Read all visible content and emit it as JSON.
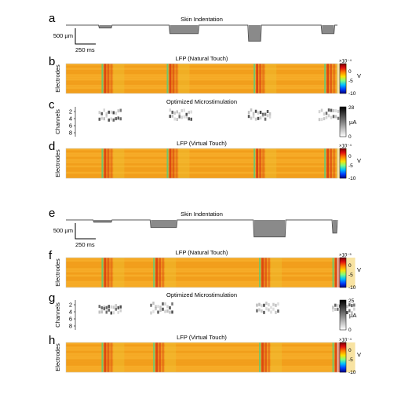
{
  "colors": {
    "heat_base": "#f4a21e",
    "heat_hot": "#d42a0c",
    "heat_cool": "#5cc97a",
    "trace": "#555555",
    "indent_fill": "#8a8a8a",
    "stim_dark": "#333333"
  },
  "colorbar_colors": {
    "jet": [
      "#7a0000",
      "#e01010",
      "#ff7f00",
      "#ffe000",
      "#7fff80",
      "#00c0ff",
      "#0040ff",
      "#00007a"
    ],
    "gray": [
      "#000000",
      "#7f7f7f",
      "#ffffff"
    ]
  },
  "panels": [
    {
      "letter": "a",
      "type": "indentation",
      "title": "Skin Indentation",
      "scale_y": "500 µm",
      "scale_x": "250 ms",
      "events": [
        {
          "start": 0.12,
          "end": 0.17,
          "depth": 0.15
        },
        {
          "start": 0.38,
          "end": 0.49,
          "depth": 0.45
        },
        {
          "start": 0.67,
          "end": 0.72,
          "depth": 0.85
        },
        {
          "start": 0.94,
          "end": 0.99,
          "depth": 0.45
        }
      ]
    },
    {
      "letter": "b",
      "type": "heatmap",
      "title": "LFP (Natural Touch)",
      "ylabel": "Electrodes",
      "colorbar": {
        "exponent": "×10⁻⁴",
        "ticks": [
          "0",
          "-5",
          "-10"
        ],
        "unit": "V",
        "scheme": "jet"
      },
      "bands": [
        0.14,
        0.38,
        0.7,
        0.96
      ]
    },
    {
      "letter": "c",
      "type": "stim",
      "title": "Optimized Microstimulation",
      "ylabel": "Channels",
      "yticks": [
        "2",
        "4",
        "6",
        "8"
      ],
      "colorbar": {
        "max": "28",
        "min": "0",
        "unit": "µA",
        "scheme": "gray"
      },
      "bursts": [
        0.12,
        0.38,
        0.67,
        0.93
      ]
    },
    {
      "letter": "d",
      "type": "heatmap",
      "title": "LFP (Virtual Touch)",
      "ylabel": "Electrodes",
      "colorbar": {
        "exponent": "×10⁻⁴",
        "ticks": [
          "0",
          "-5",
          "-10"
        ],
        "unit": "V",
        "scheme": "jet"
      },
      "bands": [
        0.14,
        0.38,
        0.7,
        0.96
      ]
    },
    {
      "letter": "e",
      "type": "indentation",
      "title": "Skin Indentation",
      "scale_y": "500 µm",
      "scale_x": "250 ms",
      "events": [
        {
          "start": 0.1,
          "end": 0.17,
          "depth": 0.12
        },
        {
          "start": 0.31,
          "end": 0.41,
          "depth": 0.4
        },
        {
          "start": 0.69,
          "end": 0.81,
          "depth": 0.9
        },
        {
          "start": 0.98,
          "end": 1.0,
          "depth": 0.7
        }
      ]
    },
    {
      "letter": "f",
      "type": "heatmap",
      "title": "LFP (Natural Touch)",
      "ylabel": "Electrodes",
      "colorbar": {
        "exponent": "×10⁻⁵",
        "ticks": [
          "0",
          "-5",
          "-10"
        ],
        "unit": "V",
        "scheme": "jet"
      },
      "bands": [
        0.14,
        0.33,
        0.72,
        0.99
      ]
    },
    {
      "letter": "g",
      "type": "stim",
      "title": "Optimized Microstimulation",
      "ylabel": "Channels",
      "yticks": [
        "2",
        "4",
        "6",
        "8"
      ],
      "colorbar": {
        "max": "25",
        "min": "0",
        "unit": "µA",
        "scheme": "gray"
      },
      "bursts": [
        0.12,
        0.31,
        0.7,
        0.98
      ]
    },
    {
      "letter": "h",
      "type": "heatmap",
      "title": "LFP (Virtual Touch)",
      "ylabel": "Electrodes",
      "colorbar": {
        "exponent": "×10⁻⁴",
        "ticks": [
          "0",
          "-5",
          "-10"
        ],
        "unit": "V",
        "scheme": "jet"
      },
      "bands": [
        0.14,
        0.33,
        0.72,
        0.99
      ]
    }
  ]
}
